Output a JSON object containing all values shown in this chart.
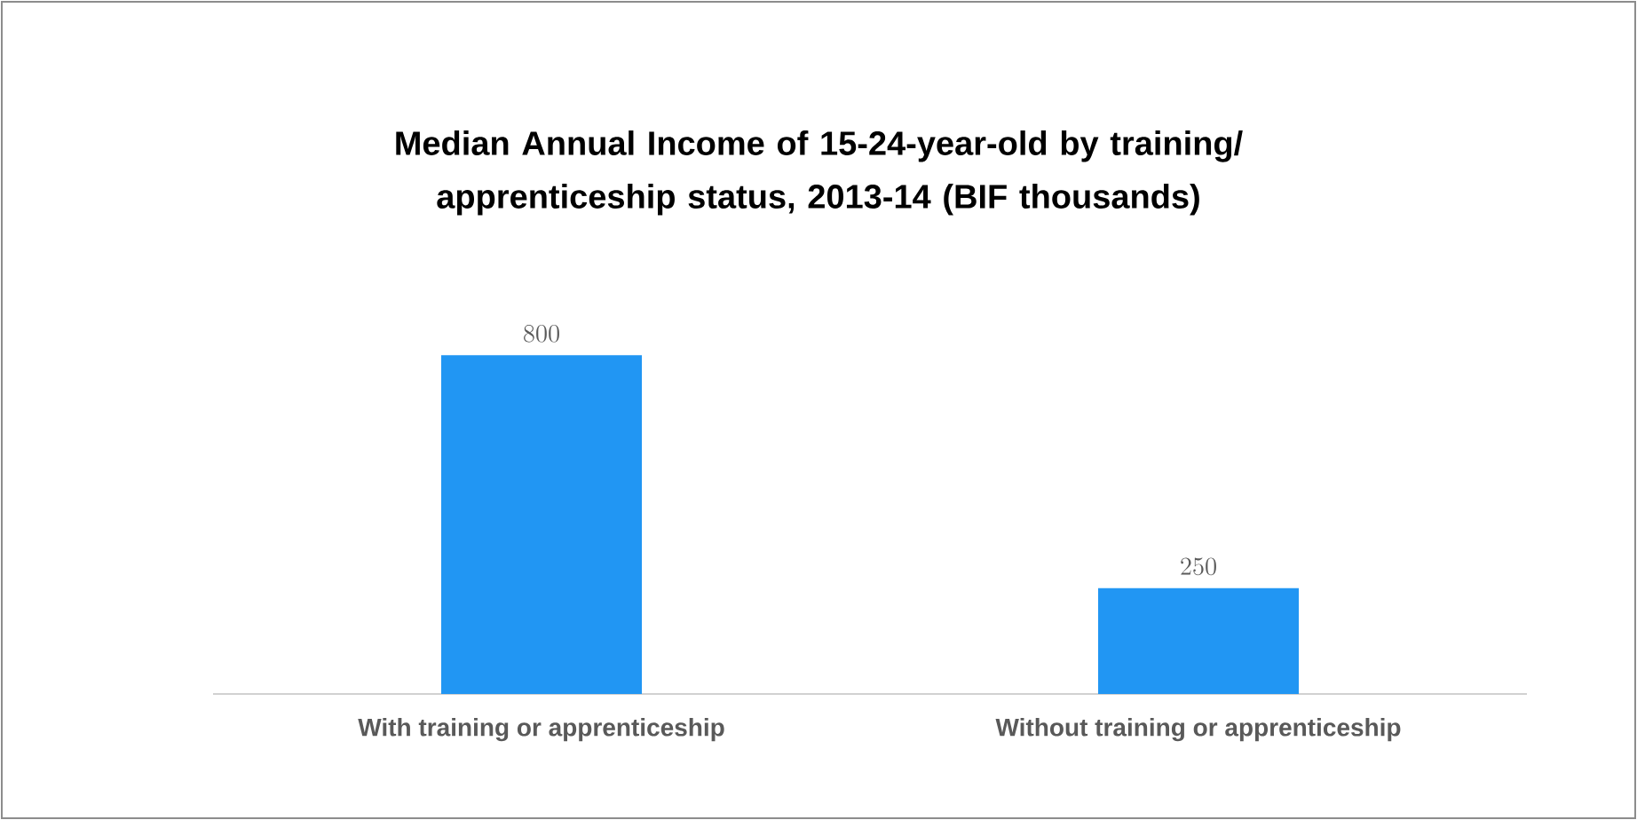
{
  "chart_data": {
    "type": "bar",
    "title": "Median Annual Income of 15-24-year-old by training/ apprenticeship status, 2013-14 (BIF thousands)",
    "categories": [
      "With training or apprenticeship",
      "Without training or apprenticeship"
    ],
    "values": [
      800,
      250
    ],
    "color": "#2196f3",
    "data_labels": true
  }
}
